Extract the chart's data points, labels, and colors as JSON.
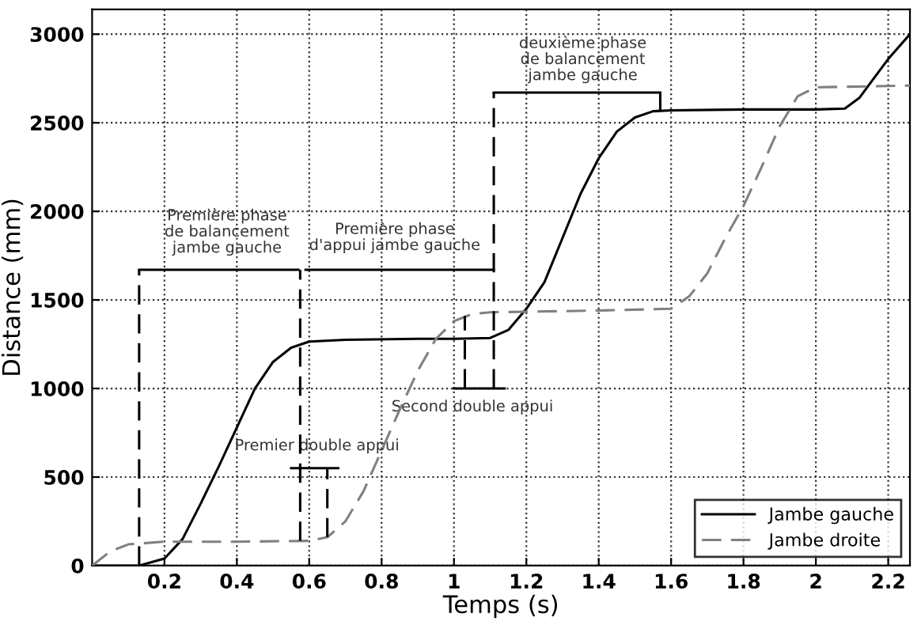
{
  "chart_data": {
    "type": "line",
    "xlabel": "Temps (s)",
    "ylabel": "Distance (mm)",
    "xlim": [
      0,
      2.26
    ],
    "ylim": [
      0,
      3140
    ],
    "xticks": [
      0.2,
      0.4,
      0.6,
      0.8,
      1,
      1.2,
      1.4,
      1.6,
      1.8,
      2,
      2.2
    ],
    "yticks": [
      0,
      500,
      1000,
      1500,
      2000,
      2500,
      3000
    ],
    "grid": true,
    "legend": "bottom right",
    "series": [
      {
        "name": "Jambe gauche",
        "color": "#000000",
        "line_style": "solid",
        "x": [
          0,
          0.13,
          0.2,
          0.25,
          0.3,
          0.35,
          0.4,
          0.45,
          0.5,
          0.55,
          0.6,
          0.7,
          0.9,
          1.0,
          1.1,
          1.15,
          1.2,
          1.25,
          1.3,
          1.35,
          1.4,
          1.45,
          1.5,
          1.55,
          1.6,
          1.8,
          2.0,
          2.08,
          2.12,
          2.16,
          2.2,
          2.26
        ],
        "values": [
          0,
          0,
          40,
          150,
          350,
          560,
          780,
          1000,
          1150,
          1230,
          1265,
          1275,
          1280,
          1280,
          1285,
          1330,
          1450,
          1600,
          1850,
          2100,
          2300,
          2450,
          2530,
          2565,
          2570,
          2575,
          2575,
          2580,
          2640,
          2750,
          2860,
          3000
        ]
      },
      {
        "name": "Jambe droite",
        "color": "#808080",
        "line_style": "dashed",
        "x": [
          0,
          0.05,
          0.1,
          0.2,
          0.4,
          0.6,
          0.65,
          0.7,
          0.75,
          0.8,
          0.85,
          0.9,
          0.95,
          1.0,
          1.05,
          1.1,
          1.4,
          1.6,
          1.65,
          1.7,
          1.75,
          1.8,
          1.85,
          1.9,
          1.95,
          2.0,
          2.26
        ],
        "values": [
          0,
          80,
          120,
          135,
          135,
          140,
          160,
          250,
          420,
          650,
          880,
          1100,
          1280,
          1380,
          1420,
          1430,
          1440,
          1450,
          1520,
          1650,
          1850,
          2030,
          2250,
          2480,
          2650,
          2700,
          2710
        ]
      },
      {
        "color": "#000000",
        "line_style": "solid",
        "x": [
          0.13,
          0.57
        ],
        "values": [
          1670,
          1670
        ]
      },
      {
        "color": "#000000",
        "line_style": "solid",
        "x": [
          0.59,
          1.11
        ],
        "values": [
          1670,
          1670
        ]
      },
      {
        "color": "#000000",
        "line_style": "solid",
        "x": [
          1.11,
          1.57
        ],
        "values": [
          2670,
          2670
        ]
      },
      {
        "color": "#000000",
        "line_style": "solid",
        "x": [
          0.55,
          0.68
        ],
        "values": [
          550,
          550
        ]
      },
      {
        "color": "#000000",
        "line_style": "solid",
        "x": [
          1.0,
          1.14
        ],
        "values": [
          1000,
          1000
        ]
      },
      {
        "color": "#000000",
        "line_style": "dashed",
        "x": [
          0.13,
          0.13
        ],
        "values": [
          0,
          1670
        ]
      },
      {
        "color": "#000000",
        "line_style": "dashed",
        "x": [
          0.575,
          0.575
        ],
        "values": [
          140,
          1670
        ]
      },
      {
        "color": "#000000",
        "line_style": "dashed",
        "x": [
          0.65,
          0.65
        ],
        "values": [
          160,
          550
        ]
      },
      {
        "color": "#000000",
        "line_style": "dashed",
        "x": [
          1.03,
          1.03
        ],
        "values": [
          1000,
          1410
        ]
      },
      {
        "color": "#000000",
        "line_style": "dashed",
        "x": [
          1.11,
          1.11
        ],
        "values": [
          1000,
          2670
        ]
      },
      {
        "color": "#000000",
        "line_style": "dashed",
        "x": [
          1.57,
          1.57
        ],
        "values": [
          2570,
          2670
        ]
      }
    ],
    "annotations": [
      "Première phase\nde balancement\njambe gauche",
      "Première phase\nd'appui jambe gauche",
      "deuxième phase\nde balancement\njambe gauche",
      "Premier double appui",
      "Second double appui"
    ]
  }
}
